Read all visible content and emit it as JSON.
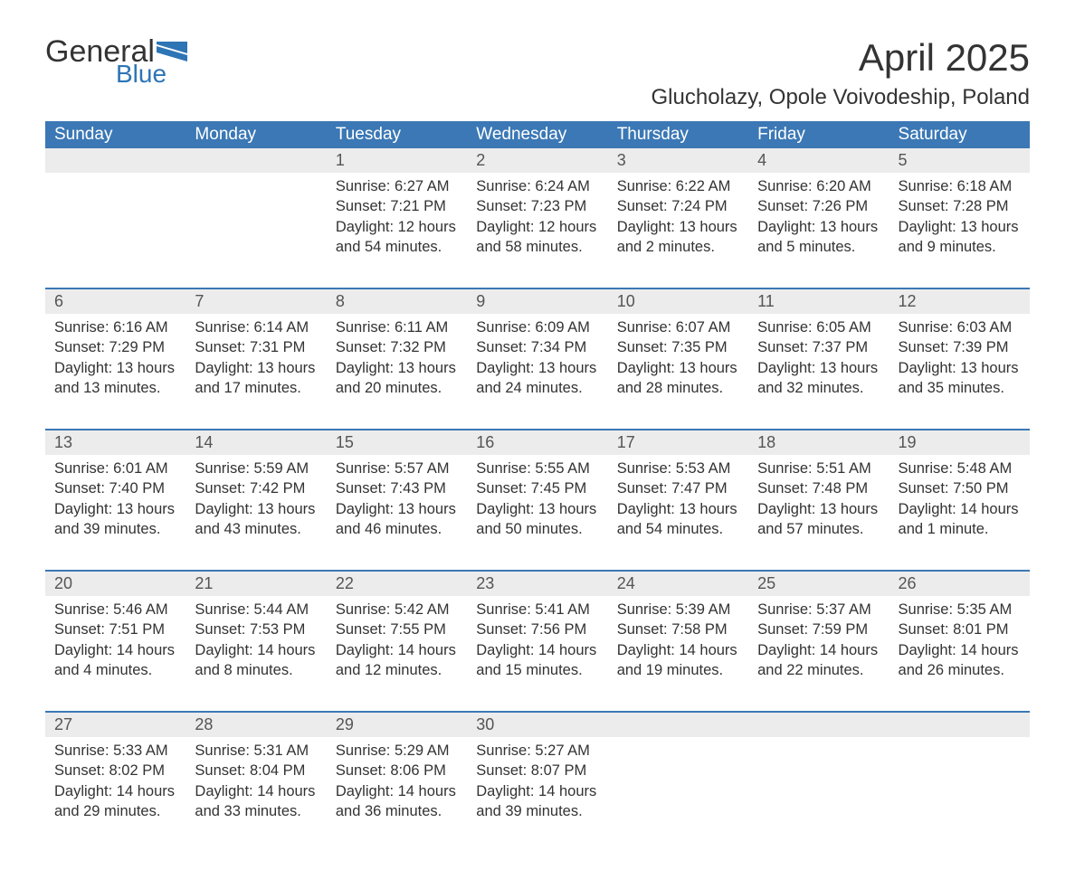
{
  "logo": {
    "word1": "General",
    "word2": "Blue"
  },
  "title": "April 2025",
  "location": "Glucholazy, Opole Voivodeship, Poland",
  "colors": {
    "header_bg": "#3b78b5",
    "header_text": "#ffffff",
    "daynum_bg": "#ececec",
    "week_divider": "#3b78b5",
    "body_text": "#333333",
    "logo_blue": "#2e75b6",
    "background": "#ffffff"
  },
  "typography": {
    "title_fontsize": 42,
    "location_fontsize": 24,
    "dayheader_fontsize": 19,
    "daynum_fontsize": 18,
    "cell_fontsize": 16.5,
    "font_family": "Segoe UI"
  },
  "day_headers": [
    "Sunday",
    "Monday",
    "Tuesday",
    "Wednesday",
    "Thursday",
    "Friday",
    "Saturday"
  ],
  "weeks": [
    [
      null,
      null,
      {
        "n": "1",
        "sunrise": "6:27 AM",
        "sunset": "7:21 PM",
        "daylight": "12 hours and 54 minutes."
      },
      {
        "n": "2",
        "sunrise": "6:24 AM",
        "sunset": "7:23 PM",
        "daylight": "12 hours and 58 minutes."
      },
      {
        "n": "3",
        "sunrise": "6:22 AM",
        "sunset": "7:24 PM",
        "daylight": "13 hours and 2 minutes."
      },
      {
        "n": "4",
        "sunrise": "6:20 AM",
        "sunset": "7:26 PM",
        "daylight": "13 hours and 5 minutes."
      },
      {
        "n": "5",
        "sunrise": "6:18 AM",
        "sunset": "7:28 PM",
        "daylight": "13 hours and 9 minutes."
      }
    ],
    [
      {
        "n": "6",
        "sunrise": "6:16 AM",
        "sunset": "7:29 PM",
        "daylight": "13 hours and 13 minutes."
      },
      {
        "n": "7",
        "sunrise": "6:14 AM",
        "sunset": "7:31 PM",
        "daylight": "13 hours and 17 minutes."
      },
      {
        "n": "8",
        "sunrise": "6:11 AM",
        "sunset": "7:32 PM",
        "daylight": "13 hours and 20 minutes."
      },
      {
        "n": "9",
        "sunrise": "6:09 AM",
        "sunset": "7:34 PM",
        "daylight": "13 hours and 24 minutes."
      },
      {
        "n": "10",
        "sunrise": "6:07 AM",
        "sunset": "7:35 PM",
        "daylight": "13 hours and 28 minutes."
      },
      {
        "n": "11",
        "sunrise": "6:05 AM",
        "sunset": "7:37 PM",
        "daylight": "13 hours and 32 minutes."
      },
      {
        "n": "12",
        "sunrise": "6:03 AM",
        "sunset": "7:39 PM",
        "daylight": "13 hours and 35 minutes."
      }
    ],
    [
      {
        "n": "13",
        "sunrise": "6:01 AM",
        "sunset": "7:40 PM",
        "daylight": "13 hours and 39 minutes."
      },
      {
        "n": "14",
        "sunrise": "5:59 AM",
        "sunset": "7:42 PM",
        "daylight": "13 hours and 43 minutes."
      },
      {
        "n": "15",
        "sunrise": "5:57 AM",
        "sunset": "7:43 PM",
        "daylight": "13 hours and 46 minutes."
      },
      {
        "n": "16",
        "sunrise": "5:55 AM",
        "sunset": "7:45 PM",
        "daylight": "13 hours and 50 minutes."
      },
      {
        "n": "17",
        "sunrise": "5:53 AM",
        "sunset": "7:47 PM",
        "daylight": "13 hours and 54 minutes."
      },
      {
        "n": "18",
        "sunrise": "5:51 AM",
        "sunset": "7:48 PM",
        "daylight": "13 hours and 57 minutes."
      },
      {
        "n": "19",
        "sunrise": "5:48 AM",
        "sunset": "7:50 PM",
        "daylight": "14 hours and 1 minute."
      }
    ],
    [
      {
        "n": "20",
        "sunrise": "5:46 AM",
        "sunset": "7:51 PM",
        "daylight": "14 hours and 4 minutes."
      },
      {
        "n": "21",
        "sunrise": "5:44 AM",
        "sunset": "7:53 PM",
        "daylight": "14 hours and 8 minutes."
      },
      {
        "n": "22",
        "sunrise": "5:42 AM",
        "sunset": "7:55 PM",
        "daylight": "14 hours and 12 minutes."
      },
      {
        "n": "23",
        "sunrise": "5:41 AM",
        "sunset": "7:56 PM",
        "daylight": "14 hours and 15 minutes."
      },
      {
        "n": "24",
        "sunrise": "5:39 AM",
        "sunset": "7:58 PM",
        "daylight": "14 hours and 19 minutes."
      },
      {
        "n": "25",
        "sunrise": "5:37 AM",
        "sunset": "7:59 PM",
        "daylight": "14 hours and 22 minutes."
      },
      {
        "n": "26",
        "sunrise": "5:35 AM",
        "sunset": "8:01 PM",
        "daylight": "14 hours and 26 minutes."
      }
    ],
    [
      {
        "n": "27",
        "sunrise": "5:33 AM",
        "sunset": "8:02 PM",
        "daylight": "14 hours and 29 minutes."
      },
      {
        "n": "28",
        "sunrise": "5:31 AM",
        "sunset": "8:04 PM",
        "daylight": "14 hours and 33 minutes."
      },
      {
        "n": "29",
        "sunrise": "5:29 AM",
        "sunset": "8:06 PM",
        "daylight": "14 hours and 36 minutes."
      },
      {
        "n": "30",
        "sunrise": "5:27 AM",
        "sunset": "8:07 PM",
        "daylight": "14 hours and 39 minutes."
      },
      null,
      null,
      null
    ]
  ],
  "labels": {
    "sunrise": "Sunrise: ",
    "sunset": "Sunset: ",
    "daylight": "Daylight: "
  }
}
